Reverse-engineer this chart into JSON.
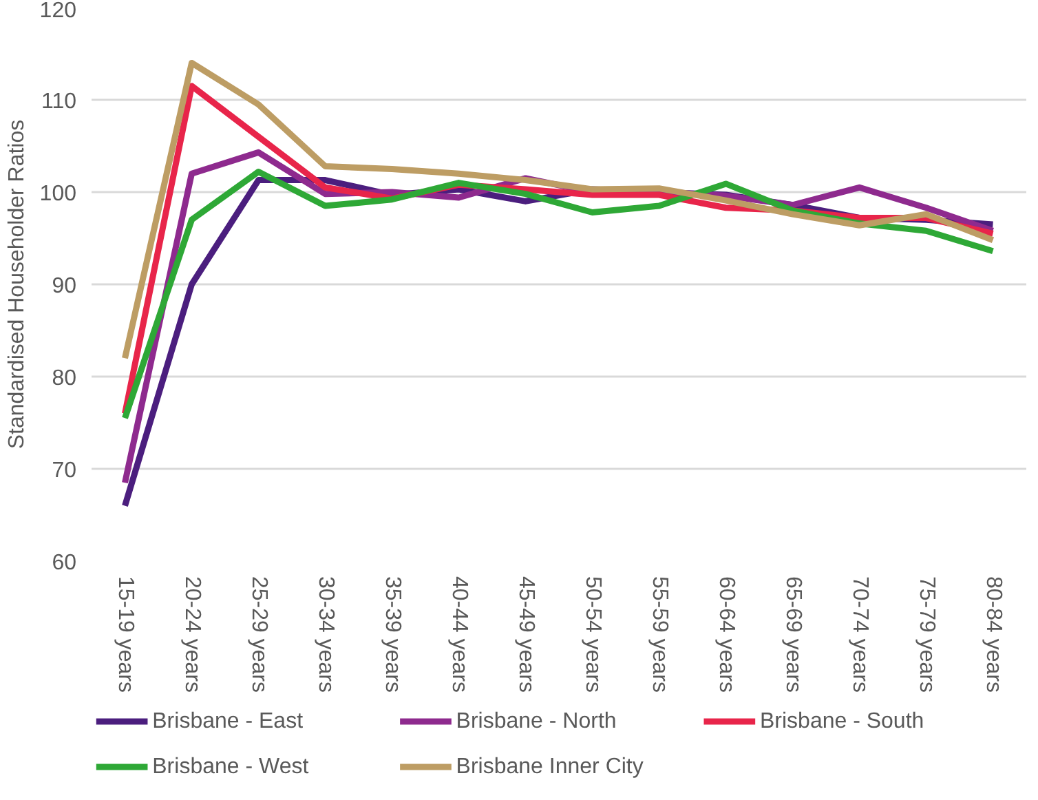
{
  "chart_data": {
    "type": "line",
    "ylabel": "Standardised Householder Ratios",
    "categories": [
      "15-19 years",
      "20-24 years",
      "25-29 years",
      "30-34 years",
      "35-39 years",
      "40-44 years",
      "45-49 years",
      "50-54 years",
      "55-59 years",
      "60-64 years",
      "65-69 years",
      "70-74 years",
      "75-79 years",
      "80-84 years"
    ],
    "series": [
      {
        "name": "Brisbane - East",
        "color": "#4b1e7e",
        "values": [
          66,
          90,
          101.3,
          101.3,
          99.7,
          100.3,
          99,
          100.3,
          100,
          99.7,
          98.6,
          97.2,
          97,
          96.5
        ]
      },
      {
        "name": "Brisbane - North",
        "color": "#8e2a8e",
        "values": [
          68.5,
          102,
          104.3,
          99.8,
          100,
          99.4,
          101.5,
          100,
          100,
          99.6,
          98.6,
          100.5,
          98.3,
          95.8
        ]
      },
      {
        "name": "Brisbane - South",
        "color": "#e8254a",
        "values": [
          76,
          111.5,
          106,
          100.5,
          99.3,
          100.8,
          100.3,
          99.7,
          99.7,
          98.3,
          98,
          97.2,
          97.2,
          95.5
        ]
      },
      {
        "name": "Brisbane - West",
        "color": "#2ea836",
        "values": [
          75.5,
          97,
          102.2,
          98.5,
          99.2,
          101,
          99.8,
          97.8,
          98.5,
          100.9,
          98,
          96.6,
          95.8,
          93.6
        ]
      },
      {
        "name": "Brisbane Inner City",
        "color": "#bd9d64",
        "values": [
          82,
          114,
          109.5,
          102.8,
          102.5,
          102,
          101.3,
          100.3,
          100.4,
          99.1,
          97.6,
          96.4,
          97.6,
          94.8
        ]
      }
    ],
    "ylim": [
      60,
      120
    ],
    "yticks": [
      60,
      70,
      80,
      90,
      100,
      110,
      120
    ],
    "grid": "y",
    "legend": "bottom",
    "marker": "none",
    "line_style": "solid"
  }
}
